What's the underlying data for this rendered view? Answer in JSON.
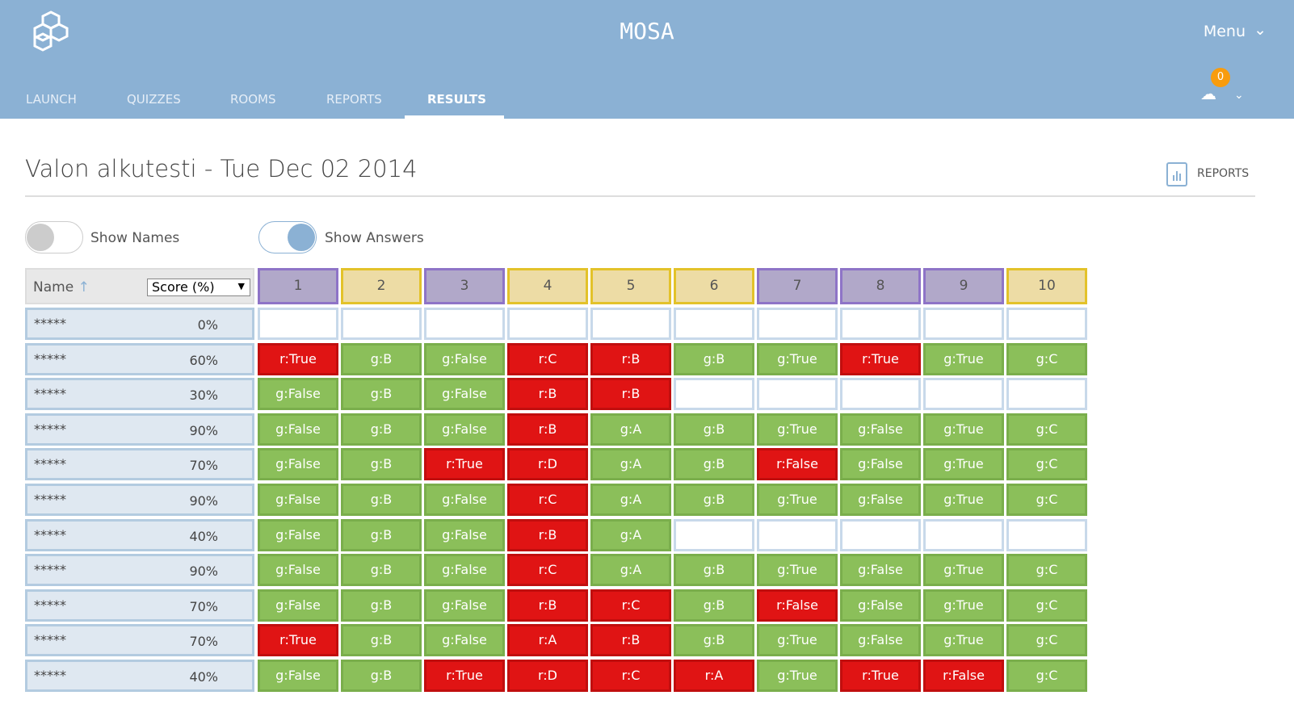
{
  "app": {
    "brand": "MOSA",
    "menu_label": "Menu",
    "user_count": "0"
  },
  "nav": [
    "LAUNCH",
    "QUIZZES",
    "ROOMS",
    "REPORTS",
    "RESULTS"
  ],
  "page": {
    "title": "Valon alkutesti - Tue Dec 02 2014",
    "reports_button": "REPORTS"
  },
  "toggles": {
    "show_names": {
      "label": "Show Names",
      "on": false
    },
    "show_answers": {
      "label": "Show Answers",
      "on": true
    }
  },
  "table": {
    "name_header": "Name",
    "sort_select": "Score (%)",
    "questions": [
      {
        "n": "1",
        "c": "p"
      },
      {
        "n": "2",
        "c": "y"
      },
      {
        "n": "3",
        "c": "p"
      },
      {
        "n": "4",
        "c": "y"
      },
      {
        "n": "5",
        "c": "y"
      },
      {
        "n": "6",
        "c": "y"
      },
      {
        "n": "7",
        "c": "p"
      },
      {
        "n": "8",
        "c": "p"
      },
      {
        "n": "9",
        "c": "p"
      },
      {
        "n": "10",
        "c": "y"
      }
    ],
    "rows": [
      {
        "name": "*****",
        "score": "0%",
        "cells": [
          "e:",
          "e:",
          "e:",
          "e:",
          "e:",
          "e:",
          "e:",
          "e:",
          "e:",
          "e:"
        ]
      },
      {
        "name": "*****",
        "score": "60%",
        "cells": [
          "r:True",
          "g:B",
          "g:False",
          "r:C",
          "r:B",
          "g:B",
          "g:True",
          "r:True",
          "g:True",
          "g:C"
        ]
      },
      {
        "name": "*****",
        "score": "30%",
        "cells": [
          "g:False",
          "g:B",
          "g:False",
          "r:B",
          "r:B",
          "e:",
          "e:",
          "e:",
          "e:",
          "e:"
        ]
      },
      {
        "name": "*****",
        "score": "90%",
        "cells": [
          "g:False",
          "g:B",
          "g:False",
          "r:B",
          "g:A",
          "g:B",
          "g:True",
          "g:False",
          "g:True",
          "g:C"
        ]
      },
      {
        "name": "*****",
        "score": "70%",
        "cells": [
          "g:False",
          "g:B",
          "r:True",
          "r:D",
          "g:A",
          "g:B",
          "r:False",
          "g:False",
          "g:True",
          "g:C"
        ]
      },
      {
        "name": "*****",
        "score": "90%",
        "cells": [
          "g:False",
          "g:B",
          "g:False",
          "r:C",
          "g:A",
          "g:B",
          "g:True",
          "g:False",
          "g:True",
          "g:C"
        ]
      },
      {
        "name": "*****",
        "score": "40%",
        "cells": [
          "g:False",
          "g:B",
          "g:False",
          "r:B",
          "g:A",
          "e:",
          "e:",
          "e:",
          "e:",
          "e:"
        ]
      },
      {
        "name": "*****",
        "score": "90%",
        "cells": [
          "g:False",
          "g:B",
          "g:False",
          "r:C",
          "g:A",
          "g:B",
          "g:True",
          "g:False",
          "g:True",
          "g:C"
        ]
      },
      {
        "name": "*****",
        "score": "70%",
        "cells": [
          "g:False",
          "g:B",
          "g:False",
          "r:B",
          "r:C",
          "g:B",
          "r:False",
          "g:False",
          "g:True",
          "g:C"
        ]
      },
      {
        "name": "*****",
        "score": "70%",
        "cells": [
          "r:True",
          "g:B",
          "g:False",
          "r:A",
          "r:B",
          "g:B",
          "g:True",
          "g:False",
          "g:True",
          "g:C"
        ]
      },
      {
        "name": "*****",
        "score": "40%",
        "cells": [
          "g:False",
          "g:B",
          "r:True",
          "r:D",
          "r:C",
          "r:A",
          "g:True",
          "r:True",
          "r:False",
          "g:C"
        ]
      }
    ]
  }
}
